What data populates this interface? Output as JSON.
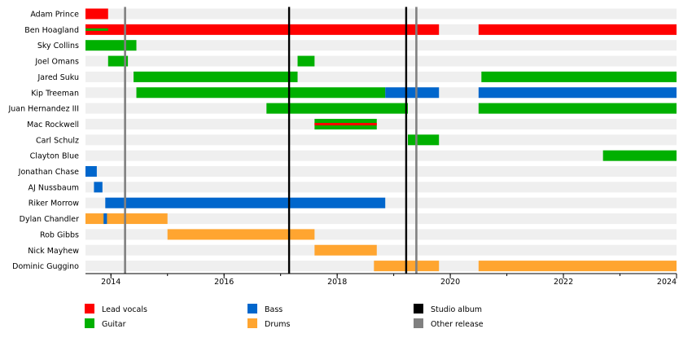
{
  "chart_data": {
    "type": "timeline",
    "title": "",
    "xlabel": "",
    "ylabel": "",
    "xlim": [
      2013.55,
      2024.0
    ],
    "x_ticks": [
      2014,
      2016,
      2018,
      2020,
      2022,
      2024
    ],
    "x_tick_labels": [
      "2014",
      "2016",
      "2018",
      "2020",
      "2022",
      "2024"
    ],
    "colors": {
      "lead_vocals": "#ff0000",
      "guitar": "#00b000",
      "bass": "#0066cc",
      "drums": "#ffa530",
      "studio_album": "#000000",
      "other_release": "#808080",
      "row_band": "#efefef"
    },
    "members": [
      {
        "name": "Adam Prince",
        "bars": [
          {
            "role": "lead_vocals",
            "start": 2013.55,
            "end": 2013.95
          }
        ]
      },
      {
        "name": "Ben Hoagland",
        "bars": [
          {
            "role": "lead_vocals",
            "start": 2013.55,
            "end": 2019.8
          },
          {
            "role": "guitar",
            "start": 2013.55,
            "end": 2013.95,
            "inner": true
          },
          {
            "role": "lead_vocals",
            "start": 2020.5,
            "end": 2024.0
          }
        ]
      },
      {
        "name": "Sky Collins",
        "bars": [
          {
            "role": "guitar",
            "start": 2013.55,
            "end": 2014.45
          }
        ]
      },
      {
        "name": "Joel Omans",
        "bars": [
          {
            "role": "guitar",
            "start": 2013.95,
            "end": 2014.3
          },
          {
            "role": "guitar",
            "start": 2017.3,
            "end": 2017.6
          }
        ]
      },
      {
        "name": "Jared Suku",
        "bars": [
          {
            "role": "guitar",
            "start": 2014.4,
            "end": 2017.3
          },
          {
            "role": "guitar",
            "start": 2020.55,
            "end": 2024.0
          }
        ]
      },
      {
        "name": "Kip Treeman",
        "bars": [
          {
            "role": "guitar",
            "start": 2014.45,
            "end": 2018.85
          },
          {
            "role": "bass",
            "start": 2018.85,
            "end": 2019.8
          },
          {
            "role": "bass",
            "start": 2020.5,
            "end": 2024.0
          }
        ]
      },
      {
        "name": "Juan Hernandez III",
        "bars": [
          {
            "role": "guitar",
            "start": 2016.75,
            "end": 2019.25
          },
          {
            "role": "guitar",
            "start": 2020.5,
            "end": 2024.0
          }
        ]
      },
      {
        "name": "Mac Rockwell",
        "bars": [
          {
            "role": "guitar",
            "start": 2017.6,
            "end": 2018.7
          },
          {
            "role": "lead_vocals",
            "start": 2017.6,
            "end": 2018.7,
            "inner": true
          }
        ]
      },
      {
        "name": "Carl Schulz",
        "bars": [
          {
            "role": "guitar",
            "start": 2019.25,
            "end": 2019.8
          }
        ]
      },
      {
        "name": "Clayton Blue",
        "bars": [
          {
            "role": "guitar",
            "start": 2022.7,
            "end": 2024.0
          }
        ]
      },
      {
        "name": "Jonathan Chase",
        "bars": [
          {
            "role": "bass",
            "start": 2013.55,
            "end": 2013.75
          }
        ]
      },
      {
        "name": "AJ Nussbaum",
        "bars": [
          {
            "role": "bass",
            "start": 2013.7,
            "end": 2013.85
          }
        ]
      },
      {
        "name": "Riker Morrow",
        "bars": [
          {
            "role": "bass",
            "start": 2013.9,
            "end": 2018.85
          }
        ]
      },
      {
        "name": "Dylan Chandler",
        "bars": [
          {
            "role": "drums",
            "start": 2013.55,
            "end": 2015.0
          },
          {
            "role": "bass",
            "start": 2013.87,
            "end": 2013.93
          }
        ]
      },
      {
        "name": "Rob Gibbs",
        "bars": [
          {
            "role": "drums",
            "start": 2015.0,
            "end": 2017.6
          }
        ]
      },
      {
        "name": "Nick Mayhew",
        "bars": [
          {
            "role": "drums",
            "start": 2017.6,
            "end": 2018.7
          }
        ]
      },
      {
        "name": "Dominic Guggino",
        "bars": [
          {
            "role": "drums",
            "start": 2018.65,
            "end": 2019.8
          },
          {
            "role": "drums",
            "start": 2020.5,
            "end": 2024.0
          }
        ]
      }
    ],
    "releases": [
      {
        "kind": "other_release",
        "x": 2014.25
      },
      {
        "kind": "studio_album",
        "x": 2017.15
      },
      {
        "kind": "studio_album",
        "x": 2019.22
      },
      {
        "kind": "other_release",
        "x": 2019.4
      }
    ],
    "legend": {
      "placement": "bottom",
      "items": [
        {
          "key": "lead_vocals",
          "label": "Lead vocals",
          "shape": "box"
        },
        {
          "key": "guitar",
          "label": "Guitar",
          "shape": "box"
        },
        {
          "key": "bass",
          "label": "Bass",
          "shape": "box"
        },
        {
          "key": "drums",
          "label": "Drums",
          "shape": "box"
        },
        {
          "key": "studio_album",
          "label": "Studio album",
          "shape": "box"
        },
        {
          "key": "other_release",
          "label": "Other release",
          "shape": "box"
        }
      ]
    }
  }
}
